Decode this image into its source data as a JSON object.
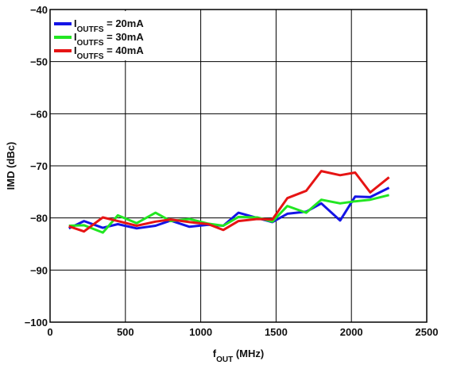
{
  "chart_data": {
    "type": "line",
    "xlabel": {
      "main": "f",
      "sub": "OUT",
      "rest": " (MHz)"
    },
    "ylabel": "IMD (dBc)",
    "xlim": [
      0,
      2500
    ],
    "ylim": [
      -100,
      -40
    ],
    "xticks": [
      0,
      500,
      1000,
      1500,
      2000,
      2500
    ],
    "yticks": [
      -100,
      -90,
      -80,
      -70,
      -60,
      -50,
      -40
    ],
    "xtick_labels": [
      "0",
      "500",
      "1000",
      "1500",
      "2000",
      "2500"
    ],
    "ytick_labels": [
      "−100",
      "−90",
      "−80",
      "−70",
      "−60",
      "−50",
      "−40"
    ],
    "grid": true,
    "legend_position": "top-left",
    "series": [
      {
        "name_main": "I",
        "name_sub": "OUTFS",
        "name_rest": " = 20mA",
        "color": "#1414e6",
        "x": [
          125,
          225,
          350,
          450,
          575,
          700,
          800,
          925,
          1050,
          1150,
          1250,
          1375,
          1475,
          1575,
          1700,
          1800,
          1925,
          2025,
          2125,
          2250
        ],
        "y": [
          -82,
          -80.6,
          -81.9,
          -81.2,
          -82,
          -81.5,
          -80.5,
          -81.7,
          -81.3,
          -81.5,
          -79,
          -80,
          -80.8,
          -79.2,
          -78.8,
          -77.2,
          -80.5,
          -75.9,
          -76,
          -74.2
        ]
      },
      {
        "name_main": "I",
        "name_sub": "OUTFS",
        "name_rest": " = 30mA",
        "color": "#22e622",
        "x": [
          125,
          225,
          350,
          450,
          575,
          700,
          800,
          925,
          1050,
          1150,
          1250,
          1375,
          1475,
          1575,
          1700,
          1800,
          1925,
          2025,
          2125,
          2250
        ],
        "y": [
          -81.5,
          -81.4,
          -82.8,
          -79.5,
          -81,
          -79,
          -80.6,
          -80.2,
          -81.1,
          -81.5,
          -79.8,
          -79.9,
          -80.7,
          -77.7,
          -79,
          -76.5,
          -77.2,
          -76.8,
          -76.5,
          -75.6
        ]
      },
      {
        "name_main": "I",
        "name_sub": "OUTFS",
        "name_rest": " = 40mA",
        "color": "#e61414",
        "x": [
          125,
          225,
          350,
          450,
          575,
          700,
          800,
          925,
          1050,
          1150,
          1250,
          1375,
          1475,
          1575,
          1700,
          1800,
          1925,
          2025,
          2125,
          2250
        ],
        "y": [
          -81.6,
          -82.6,
          -79.9,
          -80.6,
          -81.5,
          -80.7,
          -80.3,
          -80.8,
          -81.2,
          -82.3,
          -80.6,
          -80.2,
          -80.3,
          -76.2,
          -74.8,
          -71,
          -71.8,
          -71.3,
          -75.1,
          -72.2
        ]
      }
    ]
  }
}
